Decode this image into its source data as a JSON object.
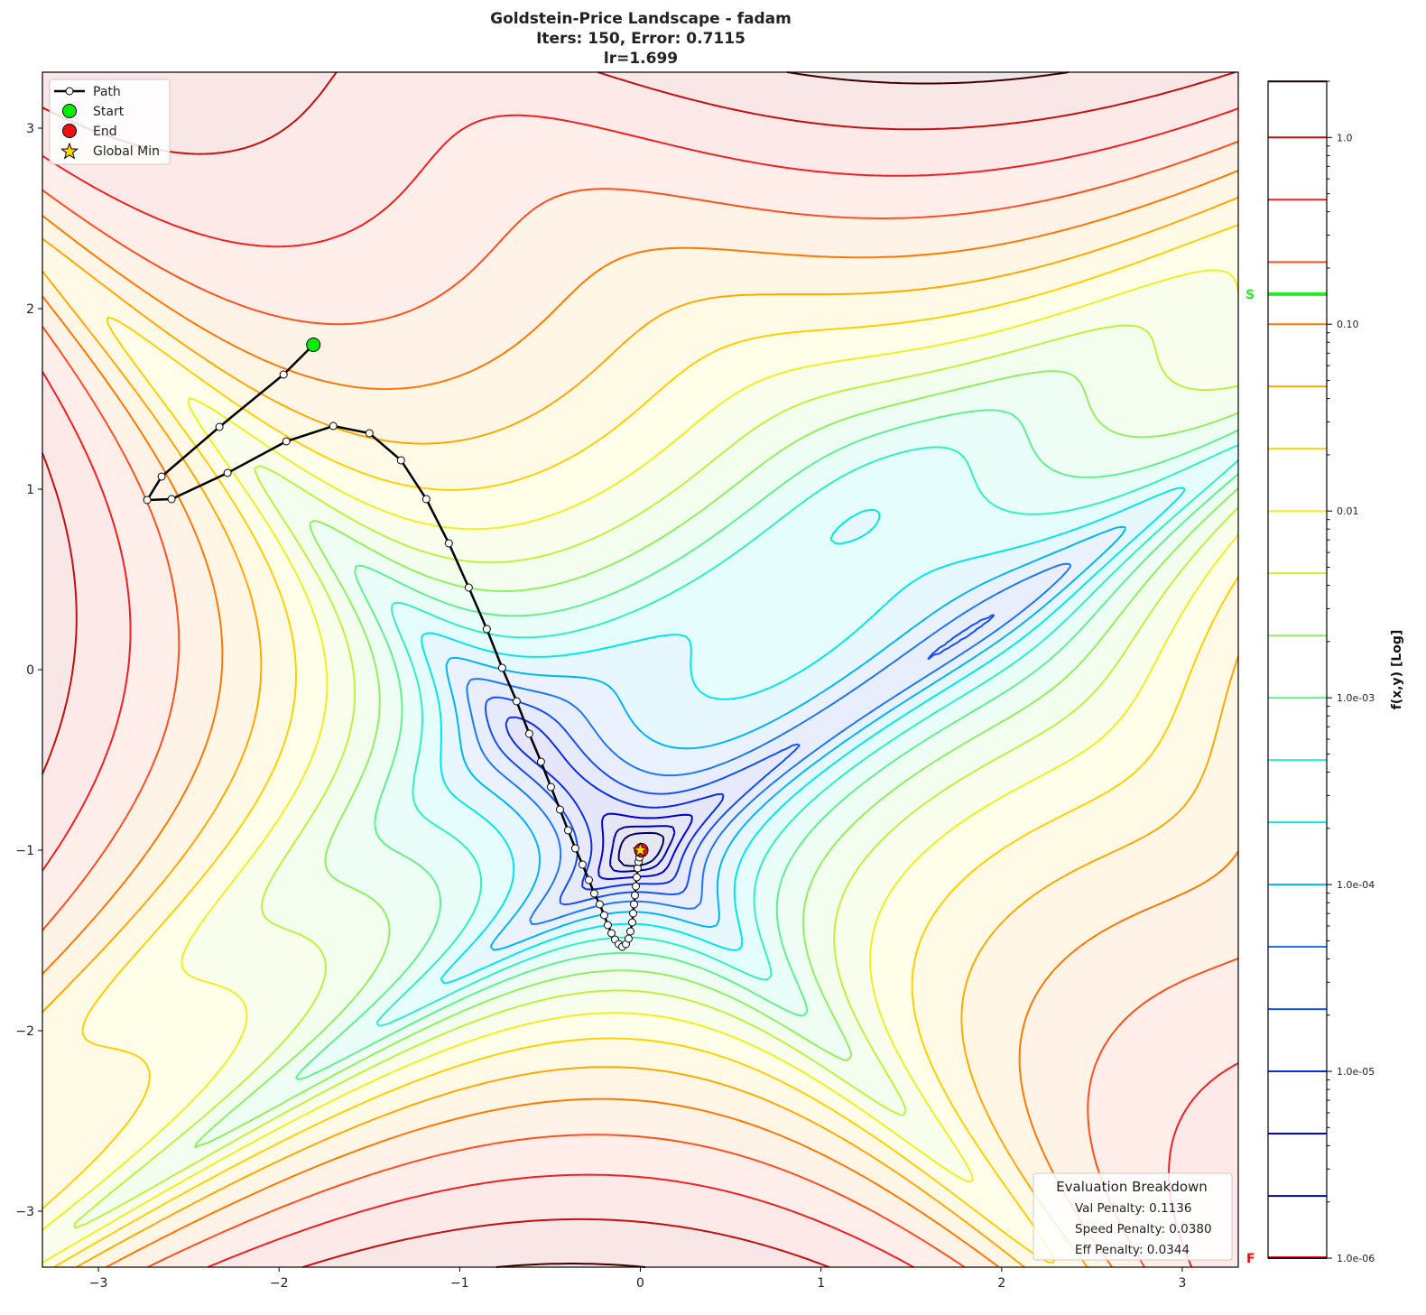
{
  "chart_data": {
    "type": "contour",
    "title_lines": [
      "Goldstein-Price Landscape - fadam",
      "Iters: 150, Error: 0.7115",
      "lr=1.699"
    ],
    "xlim": [
      -3.31,
      3.31
    ],
    "ylim": [
      -3.31,
      3.31
    ],
    "x_ticks": [
      -3,
      -2,
      -1,
      0,
      1,
      2,
      3
    ],
    "y_ticks": [
      -3,
      -2,
      -1,
      0,
      1,
      2,
      3
    ],
    "x_tick_labels": [
      "−3",
      "−2",
      "−1",
      "0",
      "1",
      "2",
      "3"
    ],
    "y_tick_labels": [
      "−3",
      "−2",
      "−1",
      "0",
      "1",
      "2",
      "3"
    ],
    "colorbar": {
      "label": "f(x,y) [Log]",
      "scale": "log",
      "range": [
        1e-06,
        2.0
      ],
      "ticks": [
        1.0,
        0.1,
        0.01,
        0.001,
        0.0001,
        1e-05,
        1e-06
      ],
      "tick_labels": [
        "1.0",
        "0.10",
        "0.01",
        "1.0e-03",
        "1.0e-04",
        "1.0e-05",
        "1.0e-06"
      ],
      "start_marker": {
        "label": "S",
        "value": 0.145,
        "color": "#22ee22"
      },
      "final_marker": {
        "label": "F",
        "value": 1e-06,
        "color": "#e01010"
      }
    },
    "contour_levels_log10": [
      -6,
      -5.667,
      -5.333,
      -5,
      -4.667,
      -4.333,
      -4,
      -3.667,
      -3.333,
      -3,
      -2.667,
      -2.333,
      -2,
      -1.667,
      -1.333,
      -1,
      -0.667,
      -0.333,
      0,
      0.3
    ],
    "contour_colors": [
      "#000060",
      "#0000a8",
      "#0000cc",
      "#0a2ee0",
      "#1450f0",
      "#1e78f0",
      "#00b4f0",
      "#00e6e6",
      "#30f0c0",
      "#60f090",
      "#90f060",
      "#c0f040",
      "#f0f020",
      "#ffd000",
      "#ffa800",
      "#ff7800",
      "#ff5020",
      "#f02020",
      "#c01010",
      "#400000"
    ],
    "path": {
      "x": [
        -1.81,
        -1.975,
        -2.33,
        -2.65,
        -2.73,
        -2.595,
        -2.285,
        -1.96,
        -1.7,
        -1.5,
        -1.325,
        -1.185,
        -1.06,
        -0.95,
        -0.85,
        -0.765,
        -0.685,
        -0.615,
        -0.55,
        -0.495,
        -0.445,
        -0.4,
        -0.36,
        -0.32,
        -0.285,
        -0.255,
        -0.225,
        -0.2,
        -0.18,
        -0.16,
        -0.14,
        -0.12,
        -0.1,
        -0.08,
        -0.065,
        -0.055,
        -0.045,
        -0.04,
        -0.035,
        -0.03,
        -0.025,
        -0.02,
        -0.015,
        -0.01,
        -0.005,
        0.0,
        0.005
      ],
      "y": [
        1.8,
        1.635,
        1.345,
        1.07,
        0.94,
        0.945,
        1.09,
        1.265,
        1.35,
        1.31,
        1.16,
        0.945,
        0.7,
        0.455,
        0.225,
        0.01,
        -0.175,
        -0.355,
        -0.51,
        -0.65,
        -0.775,
        -0.89,
        -0.99,
        -1.08,
        -1.165,
        -1.24,
        -1.3,
        -1.36,
        -1.415,
        -1.46,
        -1.495,
        -1.52,
        -1.535,
        -1.52,
        -1.49,
        -1.45,
        -1.4,
        -1.35,
        -1.3,
        -1.25,
        -1.2,
        -1.15,
        -1.1,
        -1.065,
        -1.04,
        -1.015,
        -1.0
      ]
    },
    "start": [
      -1.81,
      1.8
    ],
    "end": [
      0.005,
      -1.0
    ],
    "global_min": [
      0,
      -1
    ],
    "legend": {
      "position": "upper-left",
      "entries": [
        "Path",
        "Start",
        "End",
        "Global Min"
      ]
    },
    "evaluation": {
      "title": "Evaluation Breakdown",
      "lines": [
        "Val Penalty: 0.1136",
        "Speed Penalty: 0.0380",
        "Eff Penalty: 0.0344"
      ],
      "position": "lower-right"
    },
    "colors": {
      "path": "#000000",
      "start": "#00ee00",
      "end": "#ee1111",
      "global_min": "#ffd700"
    }
  }
}
